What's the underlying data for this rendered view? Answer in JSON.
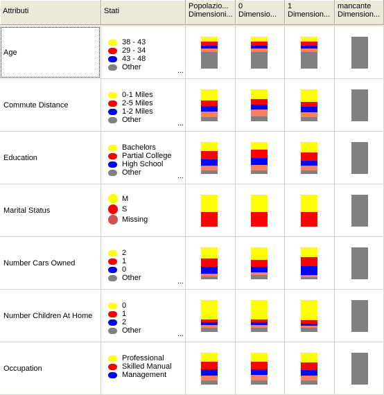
{
  "colors": {
    "yellow": "#ffff00",
    "red": "#ff0000",
    "blue": "#0000ff",
    "salmon": "#f88060",
    "gray": "#808080",
    "missing_red": "#d05050"
  },
  "header": {
    "attributes": "Attributi",
    "states": "Stati",
    "col_population": [
      "Popolazio...",
      "Dimensioni..."
    ],
    "col_0": [
      "0",
      "Dimensio..."
    ],
    "col_1": [
      "1",
      "Dimension..."
    ],
    "col_missing": [
      "mancante",
      "Dimension..."
    ]
  },
  "rows": [
    {
      "label": "Age",
      "legend": [
        {
          "text": "38 - 43",
          "color": "#ffff00"
        },
        {
          "text": "29 - 34",
          "color": "#ff0000"
        },
        {
          "text": "43 - 48",
          "color": "#0000ff"
        },
        {
          "text": "Other",
          "color": "#808080"
        }
      ],
      "more": "...",
      "bars": [
        [
          {
            "c": "#ffff00",
            "v": 0.15
          },
          {
            "c": "#ff0000",
            "v": 0.13
          },
          {
            "c": "#0000ff",
            "v": 0.09
          },
          {
            "c": "#f88060",
            "v": 0.11
          },
          {
            "c": "#808080",
            "v": 0.52
          }
        ],
        [
          {
            "c": "#ffff00",
            "v": 0.15
          },
          {
            "c": "#ff0000",
            "v": 0.13
          },
          {
            "c": "#0000ff",
            "v": 0.1
          },
          {
            "c": "#f88060",
            "v": 0.1
          },
          {
            "c": "#808080",
            "v": 0.52
          }
        ],
        [
          {
            "c": "#ffff00",
            "v": 0.15
          },
          {
            "c": "#ff0000",
            "v": 0.13
          },
          {
            "c": "#0000ff",
            "v": 0.09
          },
          {
            "c": "#f88060",
            "v": 0.11
          },
          {
            "c": "#808080",
            "v": 0.52
          }
        ]
      ]
    },
    {
      "label": "Commute Distance",
      "legend": [
        {
          "text": "0-1 Miles",
          "color": "#ffff00"
        },
        {
          "text": "2-5 Miles",
          "color": "#ff0000"
        },
        {
          "text": "1-2 Miles",
          "color": "#0000ff"
        },
        {
          "text": "Other",
          "color": "#808080"
        }
      ],
      "more": "...",
      "bars": [
        [
          {
            "c": "#ffff00",
            "v": 0.35
          },
          {
            "c": "#ff0000",
            "v": 0.17
          },
          {
            "c": "#0000ff",
            "v": 0.17
          },
          {
            "c": "#f88060",
            "v": 0.17
          },
          {
            "c": "#808080",
            "v": 0.14
          }
        ],
        [
          {
            "c": "#ffff00",
            "v": 0.3
          },
          {
            "c": "#ff0000",
            "v": 0.17
          },
          {
            "c": "#0000ff",
            "v": 0.17
          },
          {
            "c": "#f88060",
            "v": 0.2
          },
          {
            "c": "#808080",
            "v": 0.16
          }
        ],
        [
          {
            "c": "#ffff00",
            "v": 0.4
          },
          {
            "c": "#ff0000",
            "v": 0.15
          },
          {
            "c": "#0000ff",
            "v": 0.17
          },
          {
            "c": "#f88060",
            "v": 0.15
          },
          {
            "c": "#808080",
            "v": 0.13
          }
        ]
      ]
    },
    {
      "label": "Education",
      "legend": [
        {
          "text": "Bachelors",
          "color": "#ffff00"
        },
        {
          "text": "Partial College",
          "color": "#ff0000"
        },
        {
          "text": "High School",
          "color": "#0000ff"
        },
        {
          "text": "Other",
          "color": "#808080"
        }
      ],
      "more": "...",
      "bars": [
        [
          {
            "c": "#ffff00",
            "v": 0.28
          },
          {
            "c": "#ff0000",
            "v": 0.26
          },
          {
            "c": "#0000ff",
            "v": 0.19
          },
          {
            "c": "#f88060",
            "v": 0.17
          },
          {
            "c": "#808080",
            "v": 0.1
          }
        ],
        [
          {
            "c": "#ffff00",
            "v": 0.24
          },
          {
            "c": "#ff0000",
            "v": 0.25
          },
          {
            "c": "#0000ff",
            "v": 0.22
          },
          {
            "c": "#f88060",
            "v": 0.19
          },
          {
            "c": "#808080",
            "v": 0.1
          }
        ],
        [
          {
            "c": "#ffff00",
            "v": 0.32
          },
          {
            "c": "#ff0000",
            "v": 0.26
          },
          {
            "c": "#0000ff",
            "v": 0.17
          },
          {
            "c": "#f88060",
            "v": 0.15
          },
          {
            "c": "#808080",
            "v": 0.1
          }
        ]
      ]
    },
    {
      "label": "Marital Status",
      "legend": [
        {
          "text": "M",
          "color": "#ffff00",
          "big": true
        },
        {
          "text": "S",
          "color": "#ff0000",
          "big": true
        },
        {
          "text": "Missing",
          "color": "#d05050",
          "big": true
        }
      ],
      "more": "",
      "bars": [
        [
          {
            "c": "#ffff00",
            "v": 0.54
          },
          {
            "c": "#ff0000",
            "v": 0.46
          }
        ],
        [
          {
            "c": "#ffff00",
            "v": 0.54
          },
          {
            "c": "#ff0000",
            "v": 0.46
          }
        ],
        [
          {
            "c": "#ffff00",
            "v": 0.54
          },
          {
            "c": "#ff0000",
            "v": 0.46
          }
        ]
      ]
    },
    {
      "label": "Number Cars Owned",
      "legend": [
        {
          "text": "2",
          "color": "#ffff00"
        },
        {
          "text": "1",
          "color": "#ff0000"
        },
        {
          "text": "0",
          "color": "#0000ff"
        },
        {
          "text": "Other",
          "color": "#808080"
        }
      ],
      "more": "...",
      "bars": [
        [
          {
            "c": "#ffff00",
            "v": 0.35
          },
          {
            "c": "#ff0000",
            "v": 0.26
          },
          {
            "c": "#0000ff",
            "v": 0.22
          },
          {
            "c": "#f88060",
            "v": 0.09
          },
          {
            "c": "#808080",
            "v": 0.08
          }
        ],
        [
          {
            "c": "#ffff00",
            "v": 0.4
          },
          {
            "c": "#ff0000",
            "v": 0.2
          },
          {
            "c": "#0000ff",
            "v": 0.18
          },
          {
            "c": "#f88060",
            "v": 0.1
          },
          {
            "c": "#808080",
            "v": 0.12
          }
        ],
        [
          {
            "c": "#ffff00",
            "v": 0.3
          },
          {
            "c": "#ff0000",
            "v": 0.28
          },
          {
            "c": "#0000ff",
            "v": 0.28
          },
          {
            "c": "#f88060",
            "v": 0.08
          },
          {
            "c": "#808080",
            "v": 0.06
          }
        ]
      ]
    },
    {
      "label": "Number Children At Home",
      "legend": [
        {
          "text": "0",
          "color": "#ffff00"
        },
        {
          "text": "1",
          "color": "#ff0000"
        },
        {
          "text": "2",
          "color": "#0000ff"
        },
        {
          "text": "Other",
          "color": "#808080"
        }
      ],
      "more": "...",
      "bars": [
        [
          {
            "c": "#ffff00",
            "v": 0.6
          },
          {
            "c": "#ff0000",
            "v": 0.1
          },
          {
            "c": "#0000ff",
            "v": 0.08
          },
          {
            "c": "#f88060",
            "v": 0.08
          },
          {
            "c": "#808080",
            "v": 0.14
          }
        ],
        [
          {
            "c": "#ffff00",
            "v": 0.6
          },
          {
            "c": "#ff0000",
            "v": 0.1
          },
          {
            "c": "#0000ff",
            "v": 0.08
          },
          {
            "c": "#f88060",
            "v": 0.08
          },
          {
            "c": "#808080",
            "v": 0.14
          }
        ],
        [
          {
            "c": "#ffff00",
            "v": 0.63
          },
          {
            "c": "#ff0000",
            "v": 0.1
          },
          {
            "c": "#0000ff",
            "v": 0.07
          },
          {
            "c": "#f88060",
            "v": 0.08
          },
          {
            "c": "#808080",
            "v": 0.12
          }
        ]
      ]
    },
    {
      "label": "Occupation",
      "legend": [
        {
          "text": "Professional",
          "color": "#ffff00"
        },
        {
          "text": "Skilled Manual",
          "color": "#ff0000"
        },
        {
          "text": "Management",
          "color": "#0000ff"
        }
      ],
      "more": "",
      "bars": [
        [
          {
            "c": "#ffff00",
            "v": 0.28
          },
          {
            "c": "#ff0000",
            "v": 0.24
          },
          {
            "c": "#0000ff",
            "v": 0.2
          },
          {
            "c": "#f88060",
            "v": 0.16
          },
          {
            "c": "#808080",
            "v": 0.12
          }
        ],
        [
          {
            "c": "#ffff00",
            "v": 0.28
          },
          {
            "c": "#ff0000",
            "v": 0.24
          },
          {
            "c": "#0000ff",
            "v": 0.18
          },
          {
            "c": "#f88060",
            "v": 0.18
          },
          {
            "c": "#808080",
            "v": 0.12
          }
        ],
        [
          {
            "c": "#ffff00",
            "v": 0.3
          },
          {
            "c": "#ff0000",
            "v": 0.24
          },
          {
            "c": "#0000ff",
            "v": 0.18
          },
          {
            "c": "#f88060",
            "v": 0.16
          },
          {
            "c": "#808080",
            "v": 0.12
          }
        ]
      ]
    }
  ]
}
